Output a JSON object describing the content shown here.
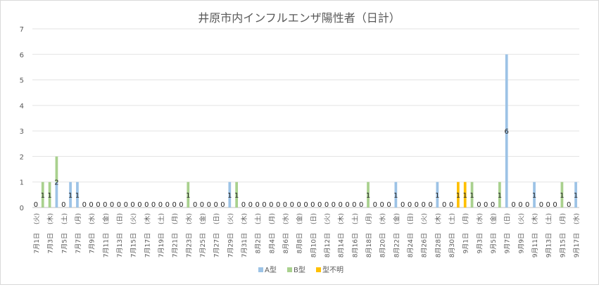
{
  "chart_data": {
    "type": "bar",
    "title": "井原市内インフルエンザ陽性者（日計）",
    "ylim": [
      0,
      7
    ],
    "yticks": [
      0,
      1,
      2,
      3,
      4,
      5,
      6,
      7
    ],
    "grid": true,
    "legend_position": "bottom",
    "categories": [
      "7月1日(火)",
      "7月2日(水)",
      "7月3日(木)",
      "7月4日(金)",
      "7月5日(土)",
      "7月6日(日)",
      "7月7日(月)",
      "7月8日(火)",
      "7月9日(水)",
      "7月10日(木)",
      "7月11日(金)",
      "7月12日(土)",
      "7月13日(日)",
      "7月14日(月)",
      "7月15日(火)",
      "7月16日(水)",
      "7月17日(木)",
      "7月18日(金)",
      "7月19日(土)",
      "7月20日(日)",
      "7月21日(月)",
      "7月22日(火)",
      "7月23日(水)",
      "7月24日(木)",
      "7月25日(金)",
      "7月26日(土)",
      "7月27日(日)",
      "7月28日(月)",
      "7月29日(火)",
      "7月30日(水)",
      "7月31日(木)",
      "8月1日(金)",
      "8月2日(土)",
      "8月3日(日)",
      "8月4日(月)",
      "8月5日(火)",
      "8月6日(水)",
      "8月7日(木)",
      "8月8日(金)",
      "8月9日(土)",
      "8月10日(日)",
      "8月11日(月)",
      "8月12日(火)",
      "8月13日(水)",
      "8月14日(木)",
      "8月15日(金)",
      "8月16日(土)",
      "8月17日(日)",
      "8月18日(月)",
      "8月19日(火)",
      "8月20日(水)",
      "8月21日(木)",
      "8月22日(金)",
      "8月23日(土)",
      "8月24日(日)",
      "8月25日(月)",
      "8月26日(火)",
      "8月27日(水)",
      "8月28日(木)",
      "8月29日(金)",
      "8月30日(土)",
      "8月31日(日)",
      "9月1日(月)",
      "9月2日(火)",
      "9月3日(水)",
      "9月4日(木)",
      "9月5日(金)",
      "9月6日(土)",
      "9月7日(日)",
      "9月8日(月)",
      "9月9日(火)",
      "9月10日(水)",
      "9月11日(木)",
      "9月12日(金)",
      "9月13日(土)",
      "9月14日(日)",
      "9月15日(月)",
      "9月16日(火)",
      "9月17日(水)"
    ],
    "tick_labels": [
      "7月1日",
      "7月3日",
      "7月5日",
      "7月7日",
      "7月9日",
      "7月11日",
      "7月13日",
      "7月15日",
      "7月17日",
      "7月19日",
      "7月21日",
      "7月23日",
      "7月25日",
      "7月27日",
      "7月29日",
      "7月31日",
      "8月2日",
      "8月4日",
      "8月6日",
      "8月8日",
      "8月10日",
      "8月12日",
      "8月14日",
      "8月16日",
      "8月18日",
      "8月20日",
      "8月22日",
      "8月24日",
      "8月26日",
      "8月28日",
      "8月30日",
      "9月1日",
      "9月3日",
      "9月5日",
      "9月7日",
      "9月9日",
      "9月11日",
      "9月13日",
      "9月15日",
      "9月17日"
    ],
    "weekday_labels": [
      "(火)",
      "(木)",
      "(土)",
      "(月)",
      "(水)",
      "(金)",
      "(日)",
      "(火)",
      "(木)",
      "(土)",
      "(月)",
      "(水)",
      "(金)",
      "(日)",
      "(火)",
      "(木)",
      "(土)",
      "(月)",
      "(水)",
      "(金)",
      "(日)",
      "(火)",
      "(木)",
      "(土)",
      "(月)",
      "(水)",
      "(金)",
      "(日)",
      "(火)",
      "(木)",
      "(土)",
      "(月)",
      "(水)",
      "(金)",
      "(日)",
      "(火)",
      "(木)",
      "(土)",
      "(月)",
      "(水)"
    ],
    "series": [
      {
        "name": "A型",
        "color": "#9dc3e6",
        "values": [
          0,
          0,
          0,
          1,
          0,
          1,
          1,
          0,
          0,
          0,
          0,
          0,
          0,
          0,
          0,
          0,
          0,
          0,
          0,
          0,
          0,
          0,
          0,
          0,
          0,
          0,
          0,
          0,
          1,
          0,
          0,
          0,
          0,
          0,
          0,
          0,
          0,
          0,
          0,
          0,
          0,
          0,
          0,
          0,
          0,
          0,
          0,
          0,
          0,
          0,
          0,
          0,
          1,
          0,
          0,
          0,
          0,
          0,
          1,
          0,
          0,
          0,
          0,
          0,
          0,
          0,
          0,
          0,
          6,
          0,
          0,
          0,
          1,
          0,
          0,
          0,
          0,
          0,
          1
        ]
      },
      {
        "name": "B型",
        "color": "#a9d18e",
        "values": [
          0,
          1,
          1,
          1,
          0,
          0,
          0,
          0,
          0,
          0,
          0,
          0,
          0,
          0,
          0,
          0,
          0,
          0,
          0,
          0,
          0,
          0,
          1,
          0,
          0,
          0,
          0,
          0,
          0,
          1,
          0,
          0,
          0,
          0,
          0,
          0,
          0,
          0,
          0,
          0,
          0,
          0,
          0,
          0,
          0,
          0,
          0,
          0,
          1,
          0,
          0,
          0,
          0,
          0,
          0,
          0,
          0,
          0,
          0,
          0,
          0,
          0,
          0,
          1,
          0,
          0,
          0,
          1,
          0,
          0,
          0,
          0,
          0,
          0,
          0,
          0,
          1,
          0,
          0
        ]
      },
      {
        "name": "型不明",
        "color": "#ffc000",
        "values": [
          0,
          0,
          0,
          0,
          0,
          0,
          0,
          0,
          0,
          0,
          0,
          0,
          0,
          0,
          0,
          0,
          0,
          0,
          0,
          0,
          0,
          0,
          0,
          0,
          0,
          0,
          0,
          0,
          0,
          0,
          0,
          0,
          0,
          0,
          0,
          0,
          0,
          0,
          0,
          0,
          0,
          0,
          0,
          0,
          0,
          0,
          0,
          0,
          0,
          0,
          0,
          0,
          0,
          0,
          0,
          0,
          0,
          0,
          0,
          0,
          0,
          1,
          1,
          0,
          0,
          0,
          0,
          0,
          0,
          0,
          0,
          0,
          0,
          0,
          0,
          0,
          0,
          0,
          0
        ]
      }
    ],
    "totals_labels": [
      0,
      1,
      1,
      2,
      0,
      1,
      1,
      0,
      0,
      0,
      0,
      0,
      0,
      0,
      0,
      0,
      0,
      0,
      0,
      0,
      0,
      0,
      1,
      0,
      0,
      0,
      0,
      0,
      1,
      1,
      0,
      0,
      0,
      0,
      0,
      0,
      0,
      0,
      0,
      0,
      0,
      0,
      0,
      0,
      0,
      0,
      0,
      0,
      1,
      0,
      0,
      0,
      1,
      0,
      0,
      0,
      0,
      0,
      1,
      0,
      0,
      1,
      1,
      1,
      0,
      0,
      0,
      1,
      6,
      0,
      0,
      0,
      1,
      0,
      0,
      0,
      1,
      0,
      1
    ]
  }
}
